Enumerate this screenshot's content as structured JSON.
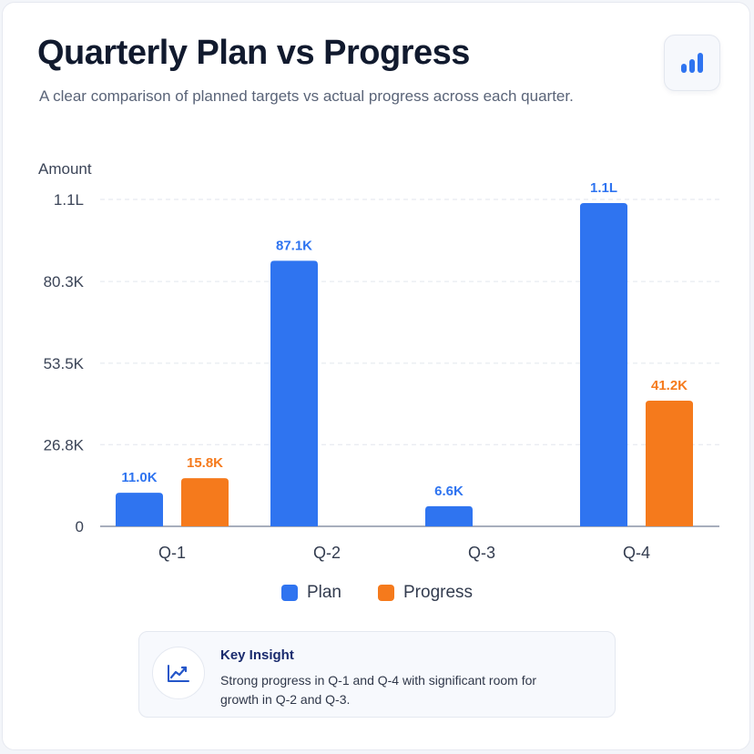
{
  "header": {
    "title": "Quarterly Plan vs Progress",
    "subtitle": "A clear comparison of planned targets vs actual progress across each quarter."
  },
  "toolbar": {
    "chart_button_icon": "bar-chart-icon"
  },
  "colors": {
    "plan": "#2f74f0",
    "progress": "#f57a1c",
    "grid": "#e2e6ee",
    "axis": "#8a93a5"
  },
  "chart_data": {
    "type": "bar",
    "ylabel": "Amount",
    "categories": [
      "Q-1",
      "Q-2",
      "Q-3",
      "Q-4"
    ],
    "ylim": [
      0,
      107200
    ],
    "yticks": [
      0,
      26800,
      53500,
      80300,
      107200
    ],
    "ytick_labels": [
      "0",
      "26.8K",
      "53.5K",
      "80.3K",
      "1.1L"
    ],
    "grid": true,
    "legend_position": "bottom-center",
    "series": [
      {
        "name": "Plan",
        "color": "#2f74f0",
        "values": [
          11000,
          87100,
          6600,
          106000
        ],
        "labels": [
          "11.0K",
          "87.1K",
          "6.6K",
          "1.1L"
        ]
      },
      {
        "name": "Progress",
        "color": "#f57a1c",
        "values": [
          15800,
          0,
          0,
          41200
        ],
        "labels": [
          "15.8K",
          "",
          "",
          "41.2K"
        ]
      }
    ]
  },
  "insight": {
    "icon": "trend-up-icon",
    "title": "Key Insight",
    "text": "Strong progress in Q-1 and Q-4 with significant room for growth in Q-2 and Q-3."
  }
}
